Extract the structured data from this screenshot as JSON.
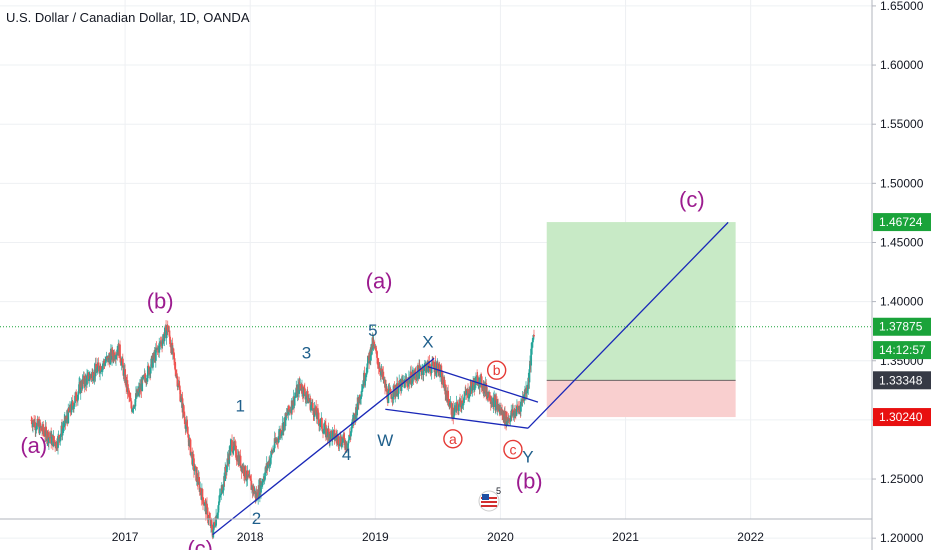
{
  "header": {
    "symbol_title": "U.S. Dollar / Canadian Dollar, 1D, OANDA"
  },
  "colors": {
    "up_candle": "#26a69a",
    "down_candle": "#ef5350",
    "wave_purple": "#9c1b8f",
    "wave_blue": "#1f5f8b",
    "red_circle": "#e53935",
    "trend_line": "#1a28b8",
    "target_zone": "#c8eac6",
    "stop_zone": "#f9cfcf",
    "label_green": "#1aa33a",
    "label_dark": "#363a45",
    "label_red": "#e81010"
  },
  "chart_data": {
    "type": "candlestick",
    "x_axis": {
      "ticks": [
        "2017",
        "2018",
        "2019",
        "2020",
        "2021",
        "2022"
      ]
    },
    "y_axis": {
      "ticks": [
        "1.65000",
        "1.60000",
        "1.55000",
        "1.50000",
        "1.45000",
        "1.40000",
        "1.35000",
        "1.30000",
        "1.25000",
        "1.20000"
      ],
      "range": [
        1.19,
        1.655
      ]
    },
    "price_anchors": [
      {
        "t": 2016.25,
        "p": 1.3
      },
      {
        "t": 2016.45,
        "p": 1.28
      },
      {
        "t": 2016.65,
        "p": 1.33
      },
      {
        "t": 2016.95,
        "p": 1.36
      },
      {
        "t": 2017.05,
        "p": 1.31
      },
      {
        "t": 2017.34,
        "p": 1.378
      },
      {
        "t": 2017.55,
        "p": 1.26
      },
      {
        "t": 2017.7,
        "p": 1.205
      },
      {
        "t": 2017.85,
        "p": 1.28
      },
      {
        "t": 2018.05,
        "p": 1.235
      },
      {
        "t": 2018.2,
        "p": 1.28
      },
      {
        "t": 2018.4,
        "p": 1.33
      },
      {
        "t": 2018.6,
        "p": 1.29
      },
      {
        "t": 2018.78,
        "p": 1.28
      },
      {
        "t": 2018.98,
        "p": 1.365
      },
      {
        "t": 2019.1,
        "p": 1.32
      },
      {
        "t": 2019.4,
        "p": 1.345
      },
      {
        "t": 2019.5,
        "p": 1.345
      },
      {
        "t": 2019.62,
        "p": 1.305
      },
      {
        "t": 2019.82,
        "p": 1.335
      },
      {
        "t": 2020.05,
        "p": 1.3
      },
      {
        "t": 2020.15,
        "p": 1.31
      },
      {
        "t": 2020.22,
        "p": 1.33
      },
      {
        "t": 2020.27,
        "p": 1.378
      }
    ],
    "wave_labels": [
      {
        "text": "(a)",
        "t": 2016.27,
        "p": 1.272,
        "style": "purple"
      },
      {
        "text": "(b)",
        "t": 2017.28,
        "p": 1.394,
        "style": "purple"
      },
      {
        "text": "(c)",
        "t": 2017.6,
        "p": 1.185,
        "style": "purple"
      },
      {
        "text": "1",
        "t": 2017.92,
        "p": 1.307,
        "style": "blue"
      },
      {
        "text": "2",
        "t": 2018.05,
        "p": 1.212,
        "style": "blue"
      },
      {
        "text": "3",
        "t": 2018.45,
        "p": 1.352,
        "style": "blue"
      },
      {
        "text": "4",
        "t": 2018.77,
        "p": 1.266,
        "style": "blue"
      },
      {
        "text": "5",
        "t": 2018.98,
        "p": 1.371,
        "style": "blue"
      },
      {
        "text": "(a)",
        "t": 2019.03,
        "p": 1.411,
        "style": "purple"
      },
      {
        "text": "W",
        "t": 2019.08,
        "p": 1.278,
        "style": "blue"
      },
      {
        "text": "X",
        "t": 2019.42,
        "p": 1.361,
        "style": "blue"
      },
      {
        "text": "Y",
        "t": 2020.22,
        "p": 1.264,
        "style": "blue"
      },
      {
        "text": "(b)",
        "t": 2020.23,
        "p": 1.242,
        "style": "purple"
      },
      {
        "text": "(c)",
        "t": 2021.53,
        "p": 1.48,
        "style": "purple"
      }
    ],
    "circle_labels": [
      {
        "text": "a",
        "t": 2019.62,
        "p": 1.284
      },
      {
        "text": "b",
        "t": 2019.97,
        "p": 1.342
      },
      {
        "text": "c",
        "t": 2020.1,
        "p": 1.275
      }
    ],
    "lines": [
      {
        "from": {
          "t": 2017.7,
          "p": 1.203
        },
        "to": {
          "t": 2019.47,
          "p": 1.352
        }
      },
      {
        "from": {
          "t": 2019.08,
          "p": 1.309
        },
        "to": {
          "t": 2020.22,
          "p": 1.293
        }
      },
      {
        "from": {
          "t": 2019.42,
          "p": 1.345
        },
        "to": {
          "t": 2020.3,
          "p": 1.315
        }
      },
      {
        "from": {
          "t": 2020.22,
          "p": 1.293
        },
        "to": {
          "t": 2021.82,
          "p": 1.467
        }
      }
    ],
    "position": {
      "t_start": 2020.37,
      "t_end": 2021.88,
      "entry": 1.33348,
      "target": 1.46724,
      "stop": 1.3024
    },
    "price_labels": [
      {
        "text": "1.46724",
        "p": 1.46724,
        "style": "green"
      },
      {
        "text": "1.37875",
        "p": 1.37875,
        "style": "green"
      },
      {
        "text": "14:12:57",
        "p": 1.359,
        "style": "green"
      },
      {
        "text": "1.33348",
        "p": 1.33348,
        "style": "dark"
      },
      {
        "text": "1.30240",
        "p": 1.3024,
        "style": "red"
      }
    ],
    "current_price": 1.37875,
    "grid": true,
    "legend": "none"
  },
  "flag_badge": "5"
}
